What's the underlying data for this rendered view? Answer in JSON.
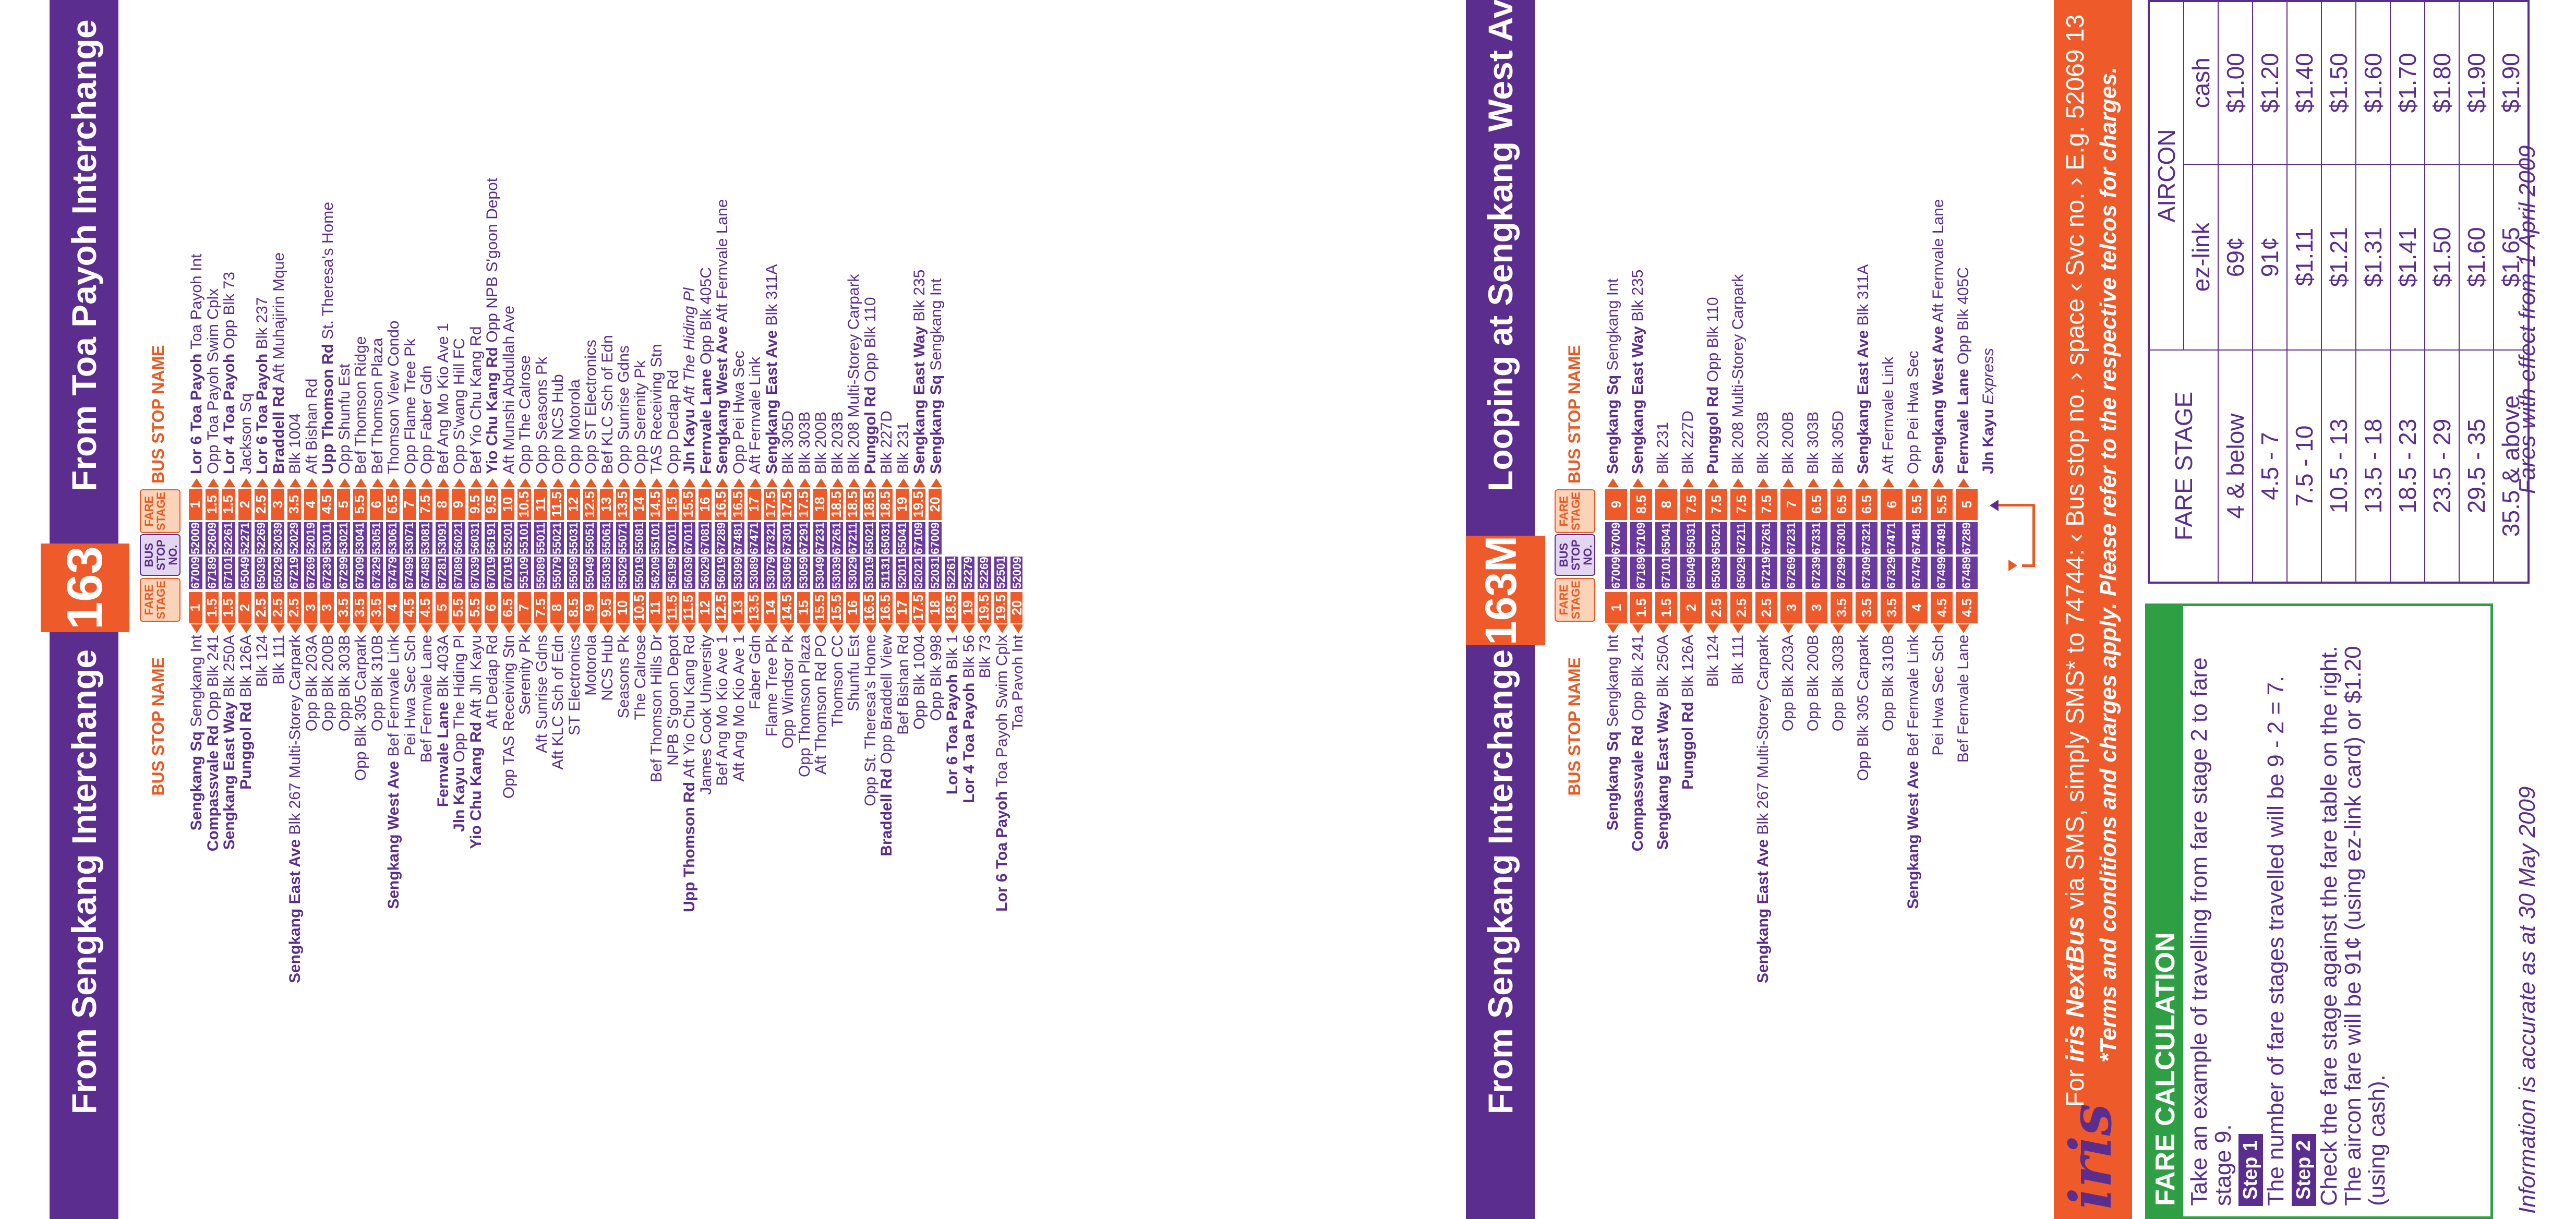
{
  "route163": {
    "number": "163",
    "hdr_left": "From Sengkang Interchange",
    "hdr_right": "From Toa Payoh Interchange",
    "col_name": "BUS STOP NAME",
    "col_fare": "FARE STAGE",
    "col_busstop": "BUS STOP NO.",
    "rows": [
      {
        "lb": "Sengkang Sq",
        "ln": " Sengkang Int",
        "lf": "1",
        "l": "67009",
        "r": "52009",
        "rf": "1",
        "rb": "Lor 6 Toa Payoh",
        "rn": " Toa Payoh Int"
      },
      {
        "lb": "Compassvale Rd",
        "ln": " Opp Blk 241",
        "lf": "1.5",
        "l": "67189",
        "r": "52609",
        "rf": "1.5",
        "rb": "",
        "rn": "Opp Toa Payoh Swim Cplx"
      },
      {
        "lb": "Sengkang East Way",
        "ln": " Blk 250A",
        "lf": "1.5",
        "l": "67101",
        "r": "52261",
        "rf": "1.5",
        "rb": "Lor 4 Toa Payoh",
        "rn": " Opp Blk 73"
      },
      {
        "lb": "Punggol Rd",
        "ln": " Blk 126A",
        "lf": "2",
        "l": "65049",
        "r": "52271",
        "rf": "2",
        "rb": "",
        "rn": "Jackson Sq"
      },
      {
        "lb": "",
        "ln": "Blk 124",
        "lf": "2.5",
        "l": "65039",
        "r": "52269",
        "rf": "2.5",
        "rb": "Lor 6 Toa Payoh",
        "rn": " Blk 237"
      },
      {
        "lb": "",
        "ln": "Blk 111",
        "lf": "2.5",
        "l": "65029",
        "r": "52039",
        "rf": "3",
        "rb": "Braddell Rd",
        "rn": " Aft Muhajirin Mque"
      },
      {
        "lb": "Sengkang East Ave",
        "ln": " Blk 267 Multi-Storey Carpark",
        "lf": "2.5",
        "l": "67219",
        "r": "52029",
        "rf": "3.5",
        "rb": "",
        "rn": "Blk 1004"
      },
      {
        "lb": "",
        "ln": "Opp Blk 203A",
        "lf": "3",
        "l": "67269",
        "r": "52019",
        "rf": "4",
        "rb": "",
        "rn": "Aft Bishan Rd"
      },
      {
        "lb": "",
        "ln": "Opp Blk 200B",
        "lf": "3",
        "l": "67239",
        "r": "53011",
        "rf": "4.5",
        "rb": "Upp Thomson Rd",
        "rn": " St. Theresa's Home"
      },
      {
        "lb": "",
        "ln": "Opp Blk 303B",
        "lf": "3.5",
        "l": "67299",
        "r": "53021",
        "rf": "5",
        "rb": "",
        "rn": "Opp Shunfu Est"
      },
      {
        "lb": "",
        "ln": "Opp Blk 305 Carpark",
        "lf": "3.5",
        "l": "67309",
        "r": "53041",
        "rf": "5.5",
        "rb": "",
        "rn": "Bef Thomson Ridge"
      },
      {
        "lb": "",
        "ln": "Opp Blk 310B",
        "lf": "3.5",
        "l": "67329",
        "r": "53051",
        "rf": "6",
        "rb": "",
        "rn": "Bef Thomson Plaza"
      },
      {
        "lb": "Sengkang West Ave",
        "ln": " Bef Fernvale Link",
        "lf": "4",
        "l": "67479",
        "r": "53061",
        "rf": "6.5",
        "rb": "",
        "rn": "Thomson View Condo"
      },
      {
        "lb": "",
        "ln": "Pei Hwa Sec Sch",
        "lf": "4.5",
        "l": "67499",
        "r": "53071",
        "rf": "7",
        "rb": "",
        "rn": "Opp Flame Tree Pk"
      },
      {
        "lb": "",
        "ln": "Bef Fernvale Lane",
        "lf": "4.5",
        "l": "67489",
        "r": "53081",
        "rf": "7.5",
        "rb": "",
        "rn": "Opp Faber Gdn"
      },
      {
        "lb": "Fernvale Lane",
        "ln": " Blk 403A",
        "lf": "5",
        "l": "67281",
        "r": "53091",
        "rf": "8",
        "rb": "",
        "rn": "Bef Ang Mo Kio Ave 1"
      },
      {
        "lb": "Jln Kayu",
        "ln": " Opp The Hiding Pl",
        "lf": "5.5",
        "l": "67089",
        "r": "56021",
        "rf": "9",
        "rb": "",
        "rn": "Opp S'wang Hill FC"
      },
      {
        "lb": "Yio Chu Kang Rd",
        "ln": " Aft Jln Kayu",
        "lf": "5.5",
        "l": "67039",
        "r": "56031",
        "rf": "9.5",
        "rb": "",
        "rn": "Bef Yio Chu Kang Rd"
      },
      {
        "lb": "",
        "ln": "Aft Dedap Rd",
        "lf": "6",
        "l": "67019",
        "r": "56191",
        "rf": "9.5",
        "rb": "Yio Chu Kang Rd",
        "rn": " Opp NPB S'goon Depot"
      },
      {
        "lb": "",
        "ln": "Opp TAS Receiving Stn",
        "lf": "6.5",
        "l": "67019",
        "r": "55201",
        "rf": "10",
        "rb": "",
        "rn": "Aft Munshi Abdullah Ave"
      },
      {
        "lb": "",
        "ln": "Serenity Pk",
        "lf": "7",
        "l": "55109",
        "r": "55101",
        "rf": "10.5",
        "rb": "",
        "rn": "Opp The Calrose"
      },
      {
        "lb": "",
        "ln": "Aft Sunrise Gdns",
        "lf": "7.5",
        "l": "55089",
        "r": "55011",
        "rf": "11",
        "rb": "",
        "rn": "Opp Seasons Pk"
      },
      {
        "lb": "",
        "ln": "Aft KLC Sch of Edn",
        "lf": "8",
        "l": "55079",
        "r": "55021",
        "rf": "11.5",
        "rb": "",
        "rn": "Opp NCS Hub"
      },
      {
        "lb": "",
        "ln": "ST Electronics",
        "lf": "8.5",
        "l": "55059",
        "r": "55031",
        "rf": "12",
        "rb": "",
        "rn": "Opp Motorola"
      },
      {
        "lb": "",
        "ln": "Motorola",
        "lf": "9",
        "l": "55049",
        "r": "55051",
        "rf": "12.5",
        "rb": "",
        "rn": "Opp ST Electronics"
      },
      {
        "lb": "",
        "ln": "NCS Hub",
        "lf": "9.5",
        "l": "55039",
        "r": "55061",
        "rf": "13",
        "rb": "",
        "rn": "Bef KLC Sch of Edn"
      },
      {
        "lb": "",
        "ln": "Seasons Pk",
        "lf": "10",
        "l": "55029",
        "r": "55071",
        "rf": "13.5",
        "rb": "",
        "rn": "Opp Sunrise Gdns"
      },
      {
        "lb": "",
        "ln": "The Calrose",
        "lf": "10.5",
        "l": "55019",
        "r": "55081",
        "rf": "14",
        "rb": "",
        "rn": "Opp Serenity Pk"
      },
      {
        "lb": "",
        "ln": "Bef Thomson Hills Dr",
        "lf": "11",
        "l": "56209",
        "r": "55101",
        "rf": "14.5",
        "rb": "",
        "rn": "TAS Receiving Stn"
      },
      {
        "lb": "",
        "ln": "NPB S'goon Depot",
        "lf": "11.5",
        "l": "56199",
        "r": "67011",
        "rf": "15",
        "rb": "",
        "rn": "Opp Dedap Rd"
      },
      {
        "lb": "Upp Thomson Rd",
        "ln": " Aft Yio Chu Kang Rd",
        "lf": "11.5",
        "l": "56039",
        "r": "67011",
        "rf": "15.5",
        "rb": "Jln Kayu",
        "rn": " Aft The Hiding Pl"
      },
      {
        "lb": "",
        "ln": "James Cook University",
        "lf": "12",
        "l": "56029",
        "r": "67081",
        "rf": "16",
        "rb": "Fernvale Lane",
        "rn": " Opp Blk 405C"
      },
      {
        "lb": "",
        "ln": "Bef Ang Mo Kio Ave 1",
        "lf": "12.5",
        "l": "56019",
        "r": "67289",
        "rf": "16.5",
        "rb": "Sengkang West Ave",
        "rn": " Aft Fernvale Lane"
      },
      {
        "lb": "",
        "ln": "Aft Ang Mo Kio Ave 1",
        "lf": "13",
        "l": "53099",
        "r": "67481",
        "rf": "16.5",
        "rb": "",
        "rn": "Opp Pei Hwa Sec"
      },
      {
        "lb": "",
        "ln": "Faber Gdn",
        "lf": "13.5",
        "l": "53089",
        "r": "67471",
        "rf": "17",
        "rb": "",
        "rn": "Aft Fernvale Link"
      },
      {
        "lb": "",
        "ln": "Flame Tree Pk",
        "lf": "14",
        "l": "53079",
        "r": "67321",
        "rf": "17.5",
        "rb": "Sengkang East Ave",
        "rn": " Blk 311A"
      },
      {
        "lb": "",
        "ln": "Opp Windsor Pk",
        "lf": "14.5",
        "l": "53069",
        "r": "67301",
        "rf": "17.5",
        "rb": "",
        "rn": "Blk 305D"
      },
      {
        "lb": "",
        "ln": "Opp Thomson Plaza",
        "lf": "15",
        "l": "53059",
        "r": "67291",
        "rf": "17.5",
        "rb": "",
        "rn": "Blk 303B"
      },
      {
        "lb": "",
        "ln": "Aft Thomson Rd PO",
        "lf": "15.5",
        "l": "53049",
        "r": "67231",
        "rf": "18",
        "rb": "",
        "rn": "Blk 200B"
      },
      {
        "lb": "",
        "ln": "Thomson CC",
        "lf": "15.5",
        "l": "53039",
        "r": "67261",
        "rf": "18.5",
        "rb": "",
        "rn": "Blk 203B"
      },
      {
        "lb": "",
        "ln": "Shunfu Est",
        "lf": "16",
        "l": "53029",
        "r": "67211",
        "rf": "18.5",
        "rb": "",
        "rn": "Blk 208 Multi-Storey Carpark"
      },
      {
        "lb": "",
        "ln": "Opp St. Theresa's Home",
        "lf": "16.5",
        "l": "53019",
        "r": "65021",
        "rf": "18.5",
        "rb": "Punggol Rd",
        "rn": " Opp Blk 110"
      },
      {
        "lb": "Braddell Rd",
        "ln": " Opp Braddell View",
        "lf": "16.5",
        "l": "51131",
        "r": "65031",
        "rf": "18.5",
        "rb": "",
        "rn": "Blk 227D"
      },
      {
        "lb": "",
        "ln": "Bef Bishan Rd",
        "lf": "17",
        "l": "52011",
        "r": "65041",
        "rf": "19",
        "rb": "",
        "rn": "Blk 231"
      },
      {
        "lb": "",
        "ln": "Opp Blk 1004",
        "lf": "17.5",
        "l": "52021",
        "r": "67109",
        "rf": "19.5",
        "rb": "Sengkang East Way",
        "rn": " Blk 235"
      },
      {
        "lb": "",
        "ln": "Opp Blk 998",
        "lf": "18",
        "l": "52031",
        "r": "67009",
        "rf": "20",
        "rb": "Sengkang Sq",
        "rn": " Sengkang Int"
      },
      {
        "lb": "Lor 6 Toa Payoh",
        "ln": " Blk 1",
        "lf": "18.5",
        "l": "52261",
        "r": "",
        "rf": "",
        "rb": "",
        "rn": ""
      },
      {
        "lb": "Lor 4 Toa Payoh",
        "ln": " Blk 56",
        "lf": "19",
        "l": "52279",
        "r": "",
        "rf": "",
        "rb": "",
        "rn": ""
      },
      {
        "lb": "",
        "ln": "Blk 73",
        "lf": "19.5",
        "l": "52269",
        "r": "",
        "rf": "",
        "rb": "",
        "rn": ""
      },
      {
        "lb": "Lor 6 Toa Payoh",
        "ln": " Toa Payoh Swim Cplx",
        "lf": "19.5",
        "l": "52501",
        "r": "",
        "rf": "",
        "rb": "",
        "rn": ""
      },
      {
        "lb": "",
        "ln": "Toa Payoh Int",
        "lf": "20",
        "l": "52009",
        "r": "",
        "rf": "",
        "rb": "",
        "rn": ""
      }
    ]
  },
  "route163M": {
    "number": "163M",
    "hdr_left": "From Sengkang Interchange",
    "hdr_right": "Looping at Sengkang West Ave",
    "col_name": "BUS STOP NAME",
    "col_fare": "FARE STAGE",
    "col_busstop": "BUS STOP NO.",
    "rows": [
      {
        "lb": "Sengkang Sq",
        "ln": " Sengkang Int",
        "lf": "1",
        "l": "67009",
        "r": "67009",
        "rf": "9",
        "rb": "Sengkang Sq",
        "rn": " Sengkang Int"
      },
      {
        "lb": "Compassvale Rd",
        "ln": " Opp Blk 241",
        "lf": "1.5",
        "l": "67189",
        "r": "67109",
        "rf": "8.5",
        "rb": "Sengkang East Way",
        "rn": " Blk 235"
      },
      {
        "lb": "Sengkang East Way",
        "ln": " Blk 250A",
        "lf": "1.5",
        "l": "67101",
        "r": "65041",
        "rf": "8",
        "rb": "",
        "rn": "Blk 231"
      },
      {
        "lb": "Punggol Rd",
        "ln": " Blk 126A",
        "lf": "2",
        "l": "65049",
        "r": "65031",
        "rf": "7.5",
        "rb": "",
        "rn": "Blk 227D"
      },
      {
        "lb": "",
        "ln": "Blk 124",
        "lf": "2.5",
        "l": "65039",
        "r": "65021",
        "rf": "7.5",
        "rb": "Punggol Rd",
        "rn": " Opp Blk 110"
      },
      {
        "lb": "",
        "ln": "Blk 111",
        "lf": "2.5",
        "l": "65029",
        "r": "67211",
        "rf": "7.5",
        "rb": "",
        "rn": "Blk 208 Multi-Storey Carpark"
      },
      {
        "lb": "Sengkang East Ave",
        "ln": " Blk 267 Multi-Storey Carpark",
        "lf": "2.5",
        "l": "67219",
        "r": "67261",
        "rf": "7.5",
        "rb": "",
        "rn": "Blk 203B"
      },
      {
        "lb": "",
        "ln": "Opp Blk 203A",
        "lf": "3",
        "l": "67269",
        "r": "67231",
        "rf": "7",
        "rb": "",
        "rn": "Blk 200B"
      },
      {
        "lb": "",
        "ln": "Opp Blk 200B",
        "lf": "3",
        "l": "67239",
        "r": "67331",
        "rf": "6.5",
        "rb": "",
        "rn": "Blk 303B"
      },
      {
        "lb": "",
        "ln": "Opp Blk 303B",
        "lf": "3.5",
        "l": "67299",
        "r": "67301",
        "rf": "6.5",
        "rb": "",
        "rn": "Blk 305D"
      },
      {
        "lb": "",
        "ln": "Opp Blk 305 Carpark",
        "lf": "3.5",
        "l": "67309",
        "r": "67321",
        "rf": "6.5",
        "rb": "Sengkang East Ave",
        "rn": " Blk 311A"
      },
      {
        "lb": "",
        "ln": "Opp Blk 310B",
        "lf": "3.5",
        "l": "67329",
        "r": "67471",
        "rf": "6",
        "rb": "",
        "rn": "Aft Fernvale Link"
      },
      {
        "lb": "Sengkang West Ave",
        "ln": " Bef Fernvale Link",
        "lf": "4",
        "l": "67479",
        "r": "67481",
        "rf": "5.5",
        "rb": "",
        "rn": "Opp Pei Hwa Sec"
      },
      {
        "lb": "",
        "ln": "Pei Hwa Sec Sch",
        "lf": "4.5",
        "l": "67499",
        "r": "67491",
        "rf": "5.5",
        "rb": "Sengkang West Ave",
        "rn": " Aft Fernvale Lane"
      },
      {
        "lb": "",
        "ln": "Bef Fernvale Lane",
        "lf": "4.5",
        "l": "67489",
        "r": "67289",
        "rf": "5",
        "rb": "Fernvale Lane",
        "rn": " Opp Blk 405C"
      },
      {
        "lb": "",
        "ln": "",
        "lf": "",
        "l": "",
        "r": "",
        "rf": "",
        "rb": "Jln Kayu",
        "rn": " Express"
      }
    ]
  },
  "iris": {
    "logo": "iris",
    "line1a": "For ",
    "line1b": "iris NextBus",
    "line1c": " via SMS, simply SMS* to 74744: ‹ Bus stop no. › space ‹ Svc no. › E.g. 52069 13",
    "line2": "*Terms and conditions and charges apply. Please refer to the respective telcos for charges."
  },
  "fare_calc": {
    "title": "FARE CALCULATION",
    "intro": "Take an example of travelling from fare stage 2 to fare stage 9.",
    "step1_label": "Step 1",
    "step1_text": "The number of fare stages travelled will be 9 - 2 = 7.",
    "step2_label": "Step 2",
    "step2_text": "Check the fare stage against the fare table on the right. The aircon fare will be 91¢ (using ez-link card) or $1.20 (using cash)."
  },
  "fare_table": {
    "h_stage": "FARE STAGE",
    "h_aircon": "AIRCON",
    "h_ezlink": "ez-link",
    "h_cash": "cash",
    "rows": [
      {
        "stage": "4 & below",
        "ez": "69¢",
        "cash": "$1.00"
      },
      {
        "stage": "4.5 - 7",
        "ez": "91¢",
        "cash": "$1.20"
      },
      {
        "stage": "7.5 - 10",
        "ez": "$1.11",
        "cash": "$1.40"
      },
      {
        "stage": "10.5 - 13",
        "ez": "$1.21",
        "cash": "$1.50"
      },
      {
        "stage": "13.5 - 18",
        "ez": "$1.31",
        "cash": "$1.60"
      },
      {
        "stage": "18.5 - 23",
        "ez": "$1.41",
        "cash": "$1.70"
      },
      {
        "stage": "23.5 - 29",
        "ez": "$1.50",
        "cash": "$1.80"
      },
      {
        "stage": "29.5 - 35",
        "ez": "$1.60",
        "cash": "$1.90"
      },
      {
        "stage": "35.5 & above",
        "ez": "$1.65",
        "cash": "$1.90"
      }
    ]
  },
  "footer": {
    "left": "Information is accurate as at 30 May 2009",
    "right": "Fares with effect from 1 April 2009"
  },
  "colors": {
    "purple": "#5b2d8e",
    "orange": "#ee5a2a",
    "green": "#2ea043"
  }
}
